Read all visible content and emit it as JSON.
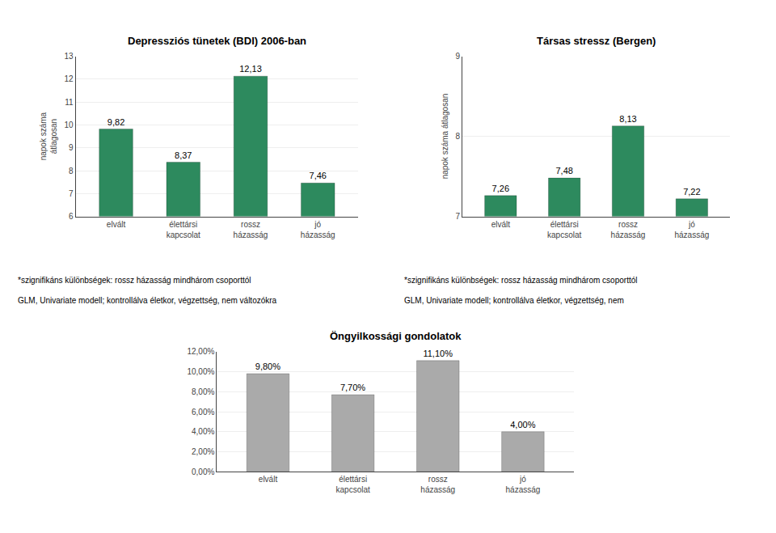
{
  "chart_data": [
    {
      "type": "bar",
      "title": "Depressziós tünetek (BDI) 2006-ban",
      "categories": [
        "elvált",
        "élettársi\nkapcsolat",
        "rossz\nházasság",
        "jó\nházasság"
      ],
      "values": [
        9.82,
        8.37,
        12.13,
        7.46
      ],
      "value_labels": [
        "9,82",
        "8,37",
        "12,13",
        "7,46"
      ],
      "data_labels": true,
      "color": "#2d8a5e",
      "ylabel": "napok száma\nátlagosan",
      "ylim": [
        6,
        13
      ],
      "yticks": [
        6,
        7,
        8,
        9,
        10,
        11,
        12,
        13
      ],
      "grid": true,
      "annotations": [
        "*szignifikáns különbségek: rossz házasság mindhárom csoporttól",
        "GLM, Univariate modell; kontrollálva életkor, végzettség, nem változókra"
      ]
    },
    {
      "type": "bar",
      "title": "Társas stressz (Bergen)",
      "categories": [
        "elvált",
        "élettársi\nkapcsolat",
        "rossz\nházasság",
        "jó\nházasság"
      ],
      "values": [
        7.26,
        7.48,
        8.13,
        7.22
      ],
      "value_labels": [
        "7,26",
        "7,48",
        "8,13",
        "7,22"
      ],
      "data_labels": true,
      "color": "#2d8a5e",
      "ylabel": "napok száma átlagosan",
      "ylim": [
        7,
        9
      ],
      "yticks": [
        7,
        8,
        9
      ],
      "grid": true,
      "annotations": [
        "*szignifikáns különbségek: rossz házasság mindhárom csoporttól",
        "GLM, Univariate modell; kontrollálva életkor, végzettség, nem"
      ]
    },
    {
      "type": "bar",
      "title": "Öngyilkossági gondolatok",
      "categories": [
        "elvált",
        "élettársi\nkapcsolat",
        "rossz\nházasság",
        "jó\nházasság"
      ],
      "values": [
        9.8,
        7.7,
        11.1,
        4.0
      ],
      "value_labels": [
        "9,80%",
        "7,70%",
        "11,10%",
        "4,00%"
      ],
      "data_labels": true,
      "color": "#aaaaaa",
      "ylim": [
        0,
        12
      ],
      "yticks": [
        {
          "value": 0,
          "label": "0,00%"
        },
        {
          "value": 2,
          "label": "2,00%"
        },
        {
          "value": 4,
          "label": "4,00%"
        },
        {
          "value": 6,
          "label": "6,00%"
        },
        {
          "value": 8,
          "label": "8,00%"
        },
        {
          "value": 10,
          "label": "10,00%"
        },
        {
          "value": 12,
          "label": "12,00%"
        }
      ],
      "grid": true
    }
  ]
}
